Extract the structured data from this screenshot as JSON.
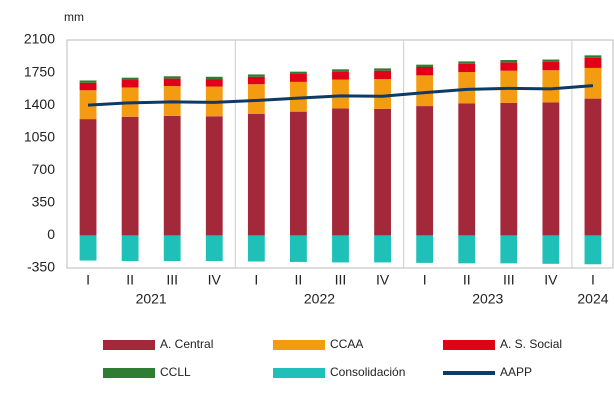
{
  "chart_data": {
    "type": "bar",
    "stacked": true,
    "y_unit": "mm",
    "categories": [
      "I",
      "II",
      "III",
      "IV",
      "I",
      "II",
      "III",
      "IV",
      "I",
      "II",
      "III",
      "IV",
      "I"
    ],
    "category_groups": [
      {
        "label": "2021",
        "span": 4
      },
      {
        "label": "2022",
        "span": 4
      },
      {
        "label": "2023",
        "span": 4
      },
      {
        "label": "2024",
        "span": 1
      }
    ],
    "series": [
      {
        "name": "A. Central",
        "color": "#a3293a",
        "values": [
          1250,
          1275,
          1285,
          1280,
          1305,
          1330,
          1365,
          1360,
          1390,
          1420,
          1425,
          1430,
          1470
        ]
      },
      {
        "name": "CCAA",
        "color": "#f39c12",
        "values": [
          310,
          315,
          320,
          320,
          320,
          320,
          310,
          320,
          330,
          335,
          345,
          345,
          330
        ]
      },
      {
        "name": "A. S. Social",
        "color": "#e0001a",
        "values": [
          80,
          80,
          80,
          80,
          80,
          85,
          85,
          90,
          90,
          90,
          90,
          90,
          110
        ]
      },
      {
        "name": "CCLL",
        "color": "#2e7d32",
        "values": [
          25,
          25,
          25,
          25,
          25,
          25,
          25,
          25,
          25,
          25,
          25,
          25,
          25
        ]
      },
      {
        "name": "Consolidación",
        "color": "#1ec0b8",
        "values": [
          -270,
          -275,
          -275,
          -275,
          -280,
          -285,
          -290,
          -290,
          -295,
          -300,
          -300,
          -305,
          -310
        ]
      },
      {
        "name": "AAPP",
        "color": "#0d3b66",
        "kind": "line",
        "values": [
          1400,
          1425,
          1435,
          1430,
          1450,
          1475,
          1500,
          1495,
          1535,
          1570,
          1580,
          1575,
          1610
        ]
      }
    ],
    "ylim": [
      -350,
      2100
    ],
    "yticks": [
      -350,
      0,
      350,
      700,
      1050,
      1400,
      1750,
      2100
    ],
    "grid": false,
    "legend": "bottom"
  }
}
